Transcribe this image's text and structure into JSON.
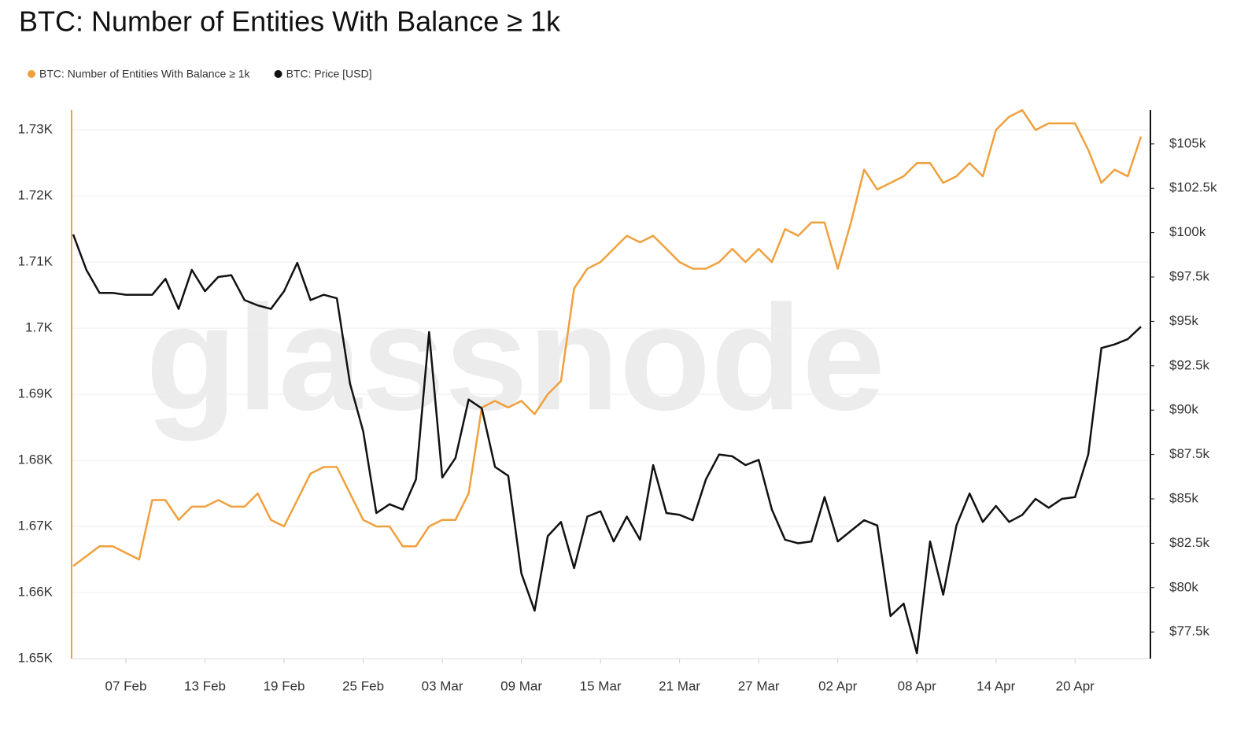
{
  "chart_data": {
    "type": "line",
    "title": "BTC: Number of Entities With Balance ≥ 1k",
    "watermark": "glassnode",
    "legend": "top-left",
    "grid": true,
    "categories": [
      null,
      null,
      null,
      null,
      "07 Feb",
      null,
      null,
      null,
      null,
      null,
      "13 Feb",
      null,
      null,
      null,
      null,
      null,
      "19 Feb",
      null,
      null,
      null,
      null,
      null,
      "25 Feb",
      null,
      null,
      null,
      null,
      null,
      "03 Mar",
      null,
      null,
      null,
      null,
      null,
      "09 Mar",
      null,
      null,
      null,
      null,
      null,
      "15 Mar",
      null,
      null,
      null,
      null,
      null,
      "21 Mar",
      null,
      null,
      null,
      null,
      null,
      "27 Mar",
      null,
      null,
      null,
      null,
      null,
      "02 Apr",
      null,
      null,
      null,
      null,
      null,
      "08 Apr",
      null,
      null,
      null,
      null,
      null,
      "14 Apr",
      null,
      null,
      null,
      null,
      null,
      "20 Apr",
      null,
      null,
      null,
      null,
      null
    ],
    "series": [
      {
        "name": "BTC: Number of Entities With Balance ≥ 1k",
        "color": "#f0a03c",
        "axis": "y",
        "values": [
          1.664,
          1.6655,
          1.667,
          1.667,
          1.666,
          1.665,
          1.674,
          1.674,
          1.671,
          1.673,
          1.673,
          1.674,
          1.673,
          1.673,
          1.675,
          1.671,
          1.67,
          1.674,
          1.678,
          1.679,
          1.679,
          1.675,
          1.671,
          1.67,
          1.67,
          1.667,
          1.667,
          1.67,
          1.671,
          1.671,
          1.675,
          1.688,
          1.689,
          1.688,
          1.689,
          1.687,
          1.69,
          1.692,
          1.706,
          1.709,
          1.71,
          1.712,
          1.714,
          1.713,
          1.714,
          1.712,
          1.71,
          1.709,
          1.709,
          1.71,
          1.712,
          1.71,
          1.712,
          1.71,
          1.715,
          1.714,
          1.716,
          1.716,
          1.709,
          1.716,
          1.724,
          1.721,
          1.722,
          1.723,
          1.725,
          1.725,
          1.722,
          1.723,
          1.725,
          1.723,
          1.73,
          1.732,
          1.733,
          1.73,
          1.731,
          1.731,
          1.731,
          1.727,
          1.722,
          1.724,
          1.723,
          1.729
        ]
      },
      {
        "name": "BTC: Price [USD]",
        "color": "#111111",
        "axis": "y2",
        "values": [
          99900,
          97900,
          96600,
          96600,
          96500,
          96500,
          96500,
          97400,
          95700,
          97900,
          96700,
          97500,
          97600,
          96200,
          95900,
          95700,
          96700,
          98300,
          96200,
          96500,
          96300,
          91500,
          88800,
          84200,
          84700,
          84400,
          86100,
          94400,
          86200,
          87300,
          90600,
          90100,
          86800,
          86300,
          80800,
          78700,
          82900,
          83700,
          81100,
          84000,
          84300,
          82600,
          84000,
          82700,
          86900,
          84200,
          84100,
          83800,
          86100,
          87500,
          87400,
          86900,
          87200,
          84400,
          82700,
          82500,
          82600,
          85100,
          82600,
          83200,
          83800,
          83500,
          78400,
          79100,
          76300,
          82600,
          79600,
          83500,
          85300,
          83700,
          84600,
          83700,
          84100,
          85000,
          84500,
          85000,
          85100,
          87500,
          93500,
          93700,
          94000,
          94700
        ]
      }
    ],
    "ylim": [
      1.65,
      1.733
    ],
    "yticks": [
      {
        "value": 1.65,
        "label": "1.65K"
      },
      {
        "value": 1.66,
        "label": "1.66K"
      },
      {
        "value": 1.67,
        "label": "1.67K"
      },
      {
        "value": 1.68,
        "label": "1.68K"
      },
      {
        "value": 1.69,
        "label": "1.69K"
      },
      {
        "value": 1.7,
        "label": "1.7K"
      },
      {
        "value": 1.71,
        "label": "1.71K"
      },
      {
        "value": 1.72,
        "label": "1.72K"
      },
      {
        "value": 1.73,
        "label": "1.73K"
      }
    ],
    "y2lim": [
      76000,
      106900
    ],
    "y2ticks": [
      {
        "value": 77500,
        "label": "$77.5k"
      },
      {
        "value": 80000,
        "label": "$80k"
      },
      {
        "value": 82500,
        "label": "$82.5k"
      },
      {
        "value": 85000,
        "label": "$85k"
      },
      {
        "value": 87500,
        "label": "$87.5k"
      },
      {
        "value": 90000,
        "label": "$90k"
      },
      {
        "value": 92500,
        "label": "$92.5k"
      },
      {
        "value": 95000,
        "label": "$95k"
      },
      {
        "value": 97500,
        "label": "$97.5k"
      },
      {
        "value": 100000,
        "label": "$100k"
      },
      {
        "value": 102500,
        "label": "$102.5k"
      },
      {
        "value": 105000,
        "label": "$105k"
      }
    ]
  }
}
